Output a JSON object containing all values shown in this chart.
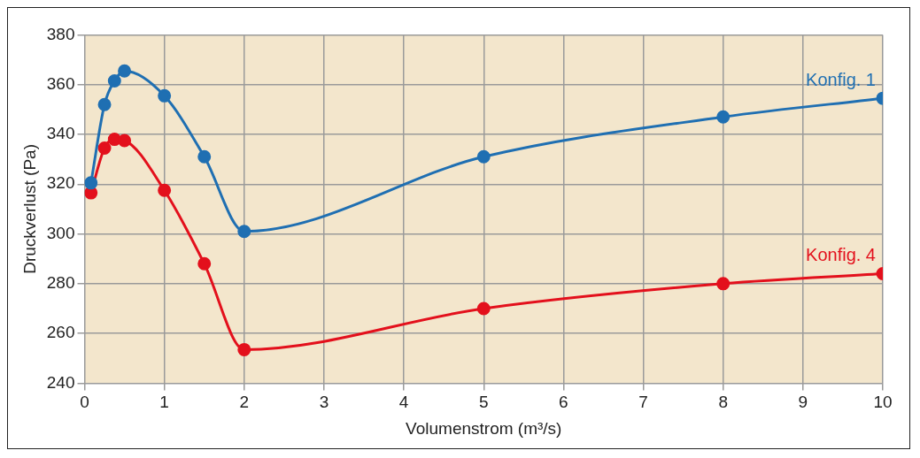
{
  "chart_data": {
    "type": "line",
    "xlabel": "Volumenstrom (m³/s)",
    "ylabel": "Druckverlust (Pa)",
    "x": [
      0.08,
      0.25,
      0.375,
      0.5,
      1,
      1.5,
      2,
      5,
      8,
      10
    ],
    "series": [
      {
        "name": "Konfig. 1",
        "color": "#1f6fb2",
        "values": [
          320.5,
          352,
          361.5,
          365.5,
          355.5,
          331,
          301,
          331,
          347,
          354.5
        ]
      },
      {
        "name": "Konfig. 4",
        "color": "#e3101c",
        "values": [
          316.5,
          334.5,
          338,
          337.5,
          317.5,
          288,
          253.5,
          270,
          280,
          284
        ]
      }
    ],
    "xlim": [
      0,
      10
    ],
    "xticks": [
      0,
      1,
      2,
      3,
      4,
      5,
      6,
      7,
      8,
      9,
      10
    ],
    "ylim": [
      240,
      380
    ],
    "yticks": [
      240,
      260,
      280,
      300,
      320,
      340,
      360,
      380
    ],
    "grid": true,
    "legend": false,
    "marker": "circle",
    "line_style": "solid"
  }
}
